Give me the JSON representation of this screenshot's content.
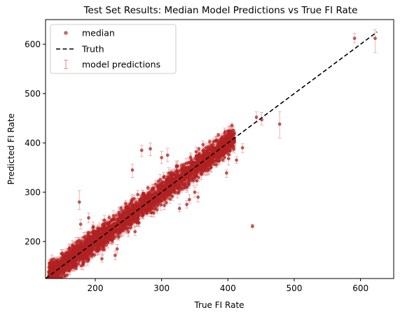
{
  "chart_data": {
    "type": "scatter",
    "title": "Test Set Results: Median Model Predictions vs True FI Rate",
    "xlabel": "True FI Rate",
    "ylabel": "Predicted FI Rate",
    "xlim": [
      125,
      650
    ],
    "ylim": [
      125,
      650
    ],
    "xticks": [
      200,
      300,
      400,
      500,
      600
    ],
    "yticks": [
      200,
      300,
      400,
      500,
      600
    ],
    "grid": false,
    "legend_position": "top-left",
    "legend": {
      "median": "median",
      "truth": "Truth",
      "errorbars": "model predictions"
    },
    "colors": {
      "median": "#c0504d",
      "errorbars": "#d98a8a",
      "cloud": "#b22222",
      "truth": "#000000"
    },
    "truth_line": {
      "x": [
        125,
        625
      ],
      "y": [
        125,
        625
      ]
    },
    "main_cloud": {
      "x_range": [
        130,
        410
      ],
      "relation": "y ≈ x",
      "scatter_lower": 20,
      "scatter_upper": 20
    },
    "outliers": [
      {
        "x": 622,
        "y": 612,
        "low": 583,
        "high": 630
      },
      {
        "x": 591,
        "y": 612,
        "low": 603,
        "high": 622
      },
      {
        "x": 478,
        "y": 438,
        "low": 410,
        "high": 463
      },
      {
        "x": 451,
        "y": 447,
        "low": 436,
        "high": 462
      },
      {
        "x": 443,
        "y": 452,
        "low": 442,
        "high": 463
      },
      {
        "x": 437,
        "y": 231,
        "low": 228,
        "high": 235
      },
      {
        "x": 401,
        "y": 368,
        "low": 355,
        "high": 378
      },
      {
        "x": 398,
        "y": 339,
        "low": 330,
        "high": 345
      },
      {
        "x": 422,
        "y": 390,
        "low": 380,
        "high": 398
      },
      {
        "x": 413,
        "y": 365,
        "low": 358,
        "high": 372
      },
      {
        "x": 355,
        "y": 290,
        "low": 280,
        "high": 300
      },
      {
        "x": 350,
        "y": 300,
        "low": 290,
        "high": 310
      },
      {
        "x": 342,
        "y": 285,
        "low": 278,
        "high": 295
      },
      {
        "x": 338,
        "y": 275,
        "low": 268,
        "high": 283
      },
      {
        "x": 327,
        "y": 267,
        "low": 260,
        "high": 276
      },
      {
        "x": 256,
        "y": 345,
        "low": 330,
        "high": 357
      },
      {
        "x": 270,
        "y": 385,
        "low": 372,
        "high": 395
      },
      {
        "x": 283,
        "y": 388,
        "low": 374,
        "high": 400
      },
      {
        "x": 300,
        "y": 370,
        "low": 358,
        "high": 383
      },
      {
        "x": 309,
        "y": 375,
        "low": 362,
        "high": 389
      },
      {
        "x": 176,
        "y": 280,
        "low": 265,
        "high": 303
      },
      {
        "x": 178,
        "y": 235,
        "low": 225,
        "high": 245
      },
      {
        "x": 190,
        "y": 248,
        "low": 238,
        "high": 258
      },
      {
        "x": 210,
        "y": 165,
        "low": 158,
        "high": 172
      },
      {
        "x": 233,
        "y": 185,
        "low": 176,
        "high": 194
      },
      {
        "x": 230,
        "y": 172,
        "low": 163,
        "high": 181
      },
      {
        "x": 250,
        "y": 220,
        "low": 210,
        "high": 228
      },
      {
        "x": 260,
        "y": 220,
        "low": 212,
        "high": 230
      },
      {
        "x": 363,
        "y": 385,
        "low": 375,
        "high": 395
      },
      {
        "x": 395,
        "y": 420,
        "low": 410,
        "high": 430
      },
      {
        "x": 383,
        "y": 405,
        "low": 396,
        "high": 414
      }
    ]
  }
}
